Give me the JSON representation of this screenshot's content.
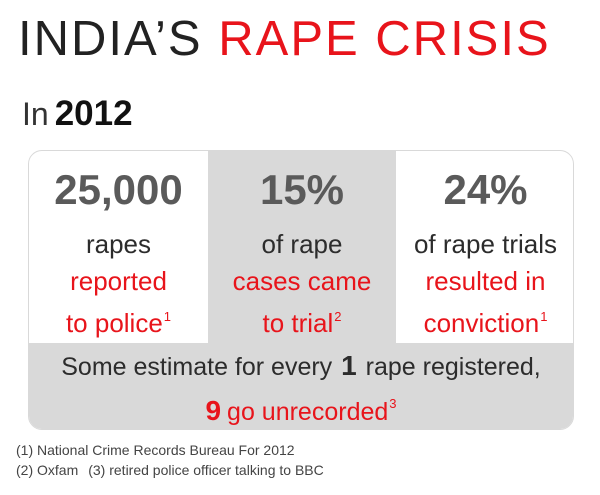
{
  "header": {
    "title_main": "INDIA’S",
    "title_accent": "RAPE CRISIS",
    "year_prefix": "In",
    "year": "2012"
  },
  "stats": [
    {
      "value": "25,000",
      "line1": "rapes",
      "line2": "reported",
      "line3": "to police",
      "footnote": "1"
    },
    {
      "value": "15%",
      "line1": "of rape",
      "line2": "cases came",
      "line3": "to trial",
      "footnote": "2"
    },
    {
      "value": "24%",
      "line1": "of rape trials",
      "line2": "resulted in",
      "line3": "conviction",
      "footnote": "1"
    }
  ],
  "estimate": {
    "text_before": "Some estimate for every",
    "registered_count": "1",
    "text_after": "rape registered,",
    "unrecorded_count": "9",
    "unrecorded_text": "go unrecorded",
    "footnote": "3"
  },
  "footnotes": [
    "(1) National Crime Records Bureau For 2012",
    "(2) Oxfam",
    "(3) retired police officer talking to BBC"
  ],
  "colors": {
    "accent": "#e8141b",
    "text_dark": "#222222",
    "value_gray": "#5a5a5a",
    "panel_gray": "#d9d9d9"
  }
}
